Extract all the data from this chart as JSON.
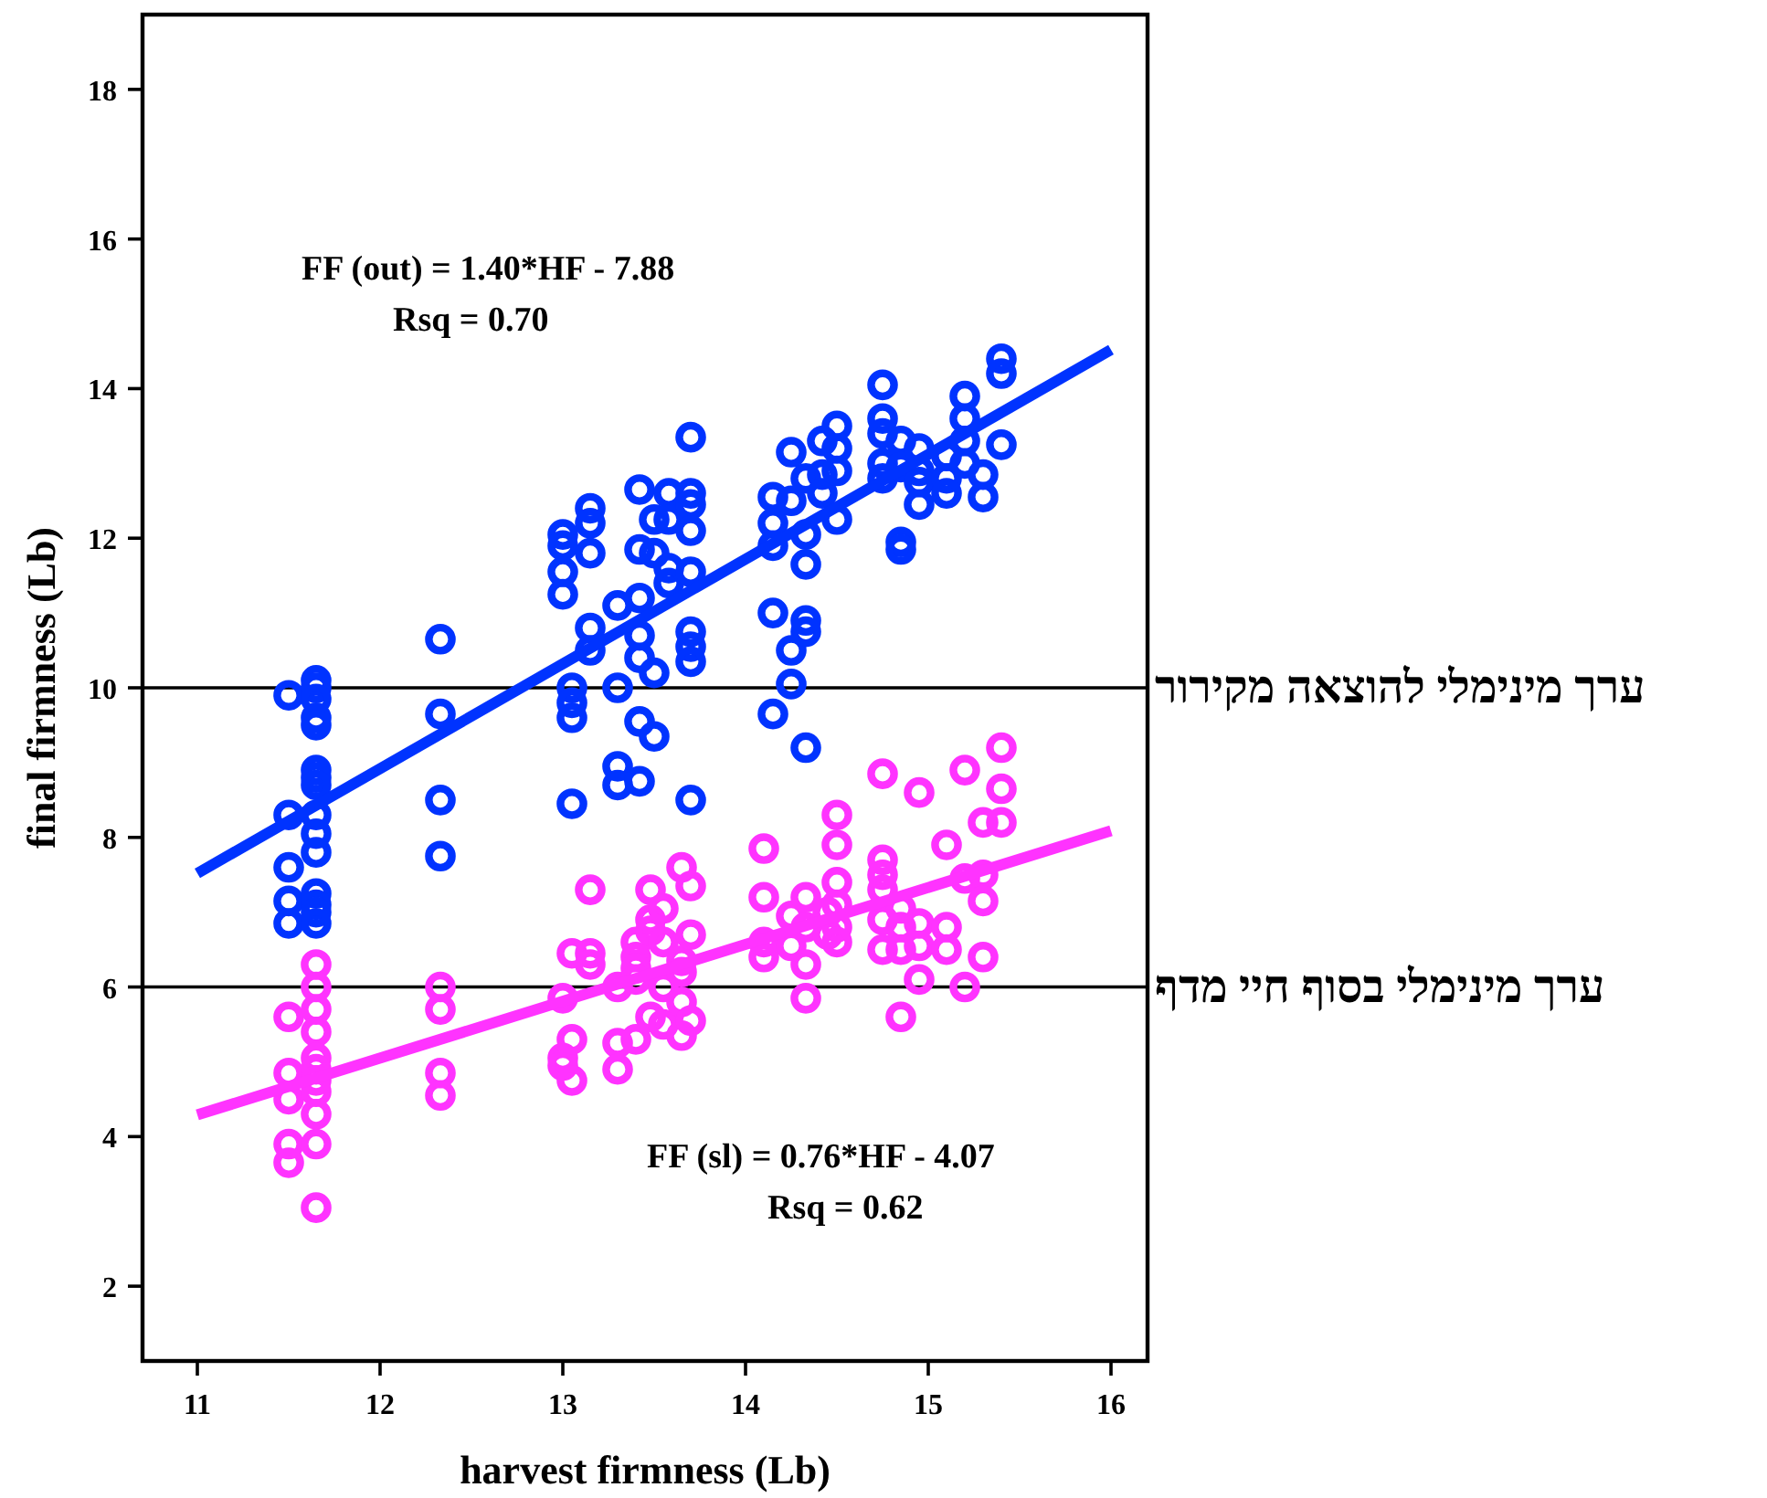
{
  "chart_data": {
    "type": "scatter",
    "xlabel": "harvest firmness (Lb)",
    "ylabel": "final firmness (Lb)",
    "xlim": [
      10.7,
      16.2
    ],
    "ylim": [
      1,
      19
    ],
    "xticks": [
      11,
      12,
      13,
      14,
      15,
      16
    ],
    "yticks": [
      2,
      4,
      6,
      8,
      10,
      12,
      14,
      16,
      18
    ],
    "grid": false,
    "series": [
      {
        "marker": "circle",
        "color": "#0033ff",
        "x": [
          11.5,
          11.5,
          11.5,
          11.5,
          11.5,
          11.65,
          11.65,
          11.65,
          11.65,
          11.65,
          11.65,
          11.65,
          11.65,
          11.65,
          11.65,
          11.65,
          11.65,
          11.65,
          11.65,
          11.65,
          12.33,
          12.33,
          12.33,
          12.33,
          13.0,
          13.0,
          13.0,
          13.0,
          13.05,
          13.05,
          13.05,
          13.05,
          13.15,
          13.15,
          13.15,
          13.15,
          13.15,
          13.3,
          13.3,
          13.3,
          13.3,
          13.42,
          13.42,
          13.42,
          13.42,
          13.42,
          13.42,
          13.42,
          13.5,
          13.5,
          13.5,
          13.5,
          13.58,
          13.58,
          13.58,
          13.58,
          13.7,
          13.7,
          13.7,
          13.7,
          13.7,
          13.7,
          13.7,
          13.7,
          13.7,
          14.15,
          14.15,
          14.15,
          14.15,
          14.15,
          14.25,
          14.25,
          14.25,
          14.25,
          14.33,
          14.33,
          14.33,
          14.33,
          14.33,
          14.33,
          14.42,
          14.42,
          14.42,
          14.5,
          14.5,
          14.5,
          14.5,
          14.75,
          14.75,
          14.75,
          14.75,
          14.75,
          14.85,
          14.85,
          14.85,
          14.85,
          14.95,
          14.95,
          14.95,
          14.95,
          15.1,
          15.1,
          15.1,
          15.2,
          15.2,
          15.2,
          15.2,
          15.3,
          15.3,
          15.4,
          15.4,
          15.4
        ],
        "values": [
          9.9,
          8.3,
          7.6,
          7.15,
          6.85,
          10.1,
          10.0,
          9.85,
          9.6,
          9.5,
          8.9,
          8.8,
          8.7,
          8.3,
          8.05,
          7.8,
          7.25,
          7.1,
          7.0,
          6.85,
          10.65,
          9.65,
          8.5,
          7.75,
          12.05,
          11.9,
          11.55,
          11.25,
          10.0,
          9.8,
          9.6,
          8.45,
          12.4,
          12.2,
          11.8,
          10.8,
          10.5,
          11.1,
          10.0,
          8.95,
          8.7,
          12.65,
          11.85,
          11.2,
          10.7,
          10.4,
          9.55,
          8.75,
          12.25,
          11.8,
          10.2,
          9.35,
          12.6,
          12.25,
          11.6,
          11.4,
          13.35,
          12.6,
          12.45,
          12.1,
          11.55,
          10.75,
          10.55,
          10.35,
          8.5,
          12.55,
          12.2,
          11.9,
          11.0,
          9.65,
          13.15,
          12.5,
          10.5,
          10.05,
          12.8,
          12.05,
          11.65,
          10.9,
          10.75,
          9.2,
          13.3,
          12.85,
          12.6,
          13.5,
          13.2,
          12.9,
          12.25,
          14.05,
          13.6,
          13.4,
          13.0,
          12.8,
          13.3,
          12.95,
          11.95,
          11.85,
          13.2,
          12.9,
          12.75,
          12.45,
          13.1,
          12.8,
          12.6,
          13.9,
          13.6,
          13.3,
          13.0,
          12.85,
          12.55,
          14.4,
          14.2,
          13.25
        ]
      },
      {
        "marker": "circle",
        "color": "#ff33ff",
        "x": [
          11.5,
          11.5,
          11.5,
          11.5,
          11.5,
          11.65,
          11.65,
          11.65,
          11.65,
          11.65,
          11.65,
          11.65,
          11.65,
          11.65,
          11.65,
          11.65,
          12.33,
          12.33,
          12.33,
          12.33,
          13.0,
          13.0,
          13.0,
          13.05,
          13.05,
          13.05,
          13.15,
          13.15,
          13.15,
          13.3,
          13.3,
          13.3,
          13.4,
          13.4,
          13.4,
          13.4,
          13.4,
          13.48,
          13.48,
          13.48,
          13.48,
          13.55,
          13.55,
          13.55,
          13.55,
          13.65,
          13.65,
          13.65,
          13.65,
          13.65,
          13.7,
          13.7,
          13.7,
          14.1,
          14.1,
          14.1,
          14.1,
          14.25,
          14.25,
          14.33,
          14.33,
          14.33,
          14.33,
          14.45,
          14.45,
          14.5,
          14.5,
          14.5,
          14.5,
          14.5,
          14.5,
          14.75,
          14.75,
          14.75,
          14.75,
          14.75,
          14.75,
          14.85,
          14.85,
          14.85,
          14.85,
          14.95,
          14.95,
          14.95,
          14.95,
          15.1,
          15.1,
          15.1,
          15.2,
          15.2,
          15.2,
          15.3,
          15.3,
          15.3,
          15.3,
          15.4,
          15.4,
          15.4
        ],
        "values": [
          5.6,
          4.85,
          4.5,
          3.9,
          3.65,
          6.3,
          6.0,
          5.7,
          5.4,
          5.05,
          4.9,
          4.75,
          4.6,
          4.3,
          3.9,
          3.05,
          6.0,
          5.7,
          4.85,
          4.55,
          5.85,
          5.05,
          4.95,
          6.45,
          5.3,
          4.75,
          7.3,
          6.45,
          6.3,
          6.0,
          5.25,
          4.9,
          6.6,
          6.4,
          6.25,
          6.1,
          5.3,
          7.3,
          6.9,
          6.75,
          5.6,
          7.05,
          6.6,
          6.0,
          5.5,
          7.6,
          6.35,
          6.2,
          5.8,
          5.35,
          7.35,
          6.7,
          5.55,
          7.85,
          7.2,
          6.6,
          6.4,
          6.95,
          6.55,
          7.2,
          6.8,
          6.3,
          5.85,
          7.0,
          6.7,
          8.3,
          7.9,
          7.4,
          7.1,
          6.8,
          6.6,
          8.85,
          7.7,
          7.5,
          7.3,
          6.9,
          6.5,
          7.05,
          6.8,
          6.5,
          5.6,
          8.6,
          6.85,
          6.55,
          6.1,
          7.9,
          6.8,
          6.5,
          8.9,
          7.45,
          6.0,
          8.2,
          7.5,
          7.15,
          6.4,
          9.2,
          8.65,
          8.2
        ]
      },
      {
        "type": "line",
        "color": "#0033ff",
        "x": [
          11,
          16
        ],
        "values": [
          7.52,
          14.52
        ]
      },
      {
        "type": "line",
        "color": "#ff33ff",
        "x": [
          11,
          16
        ],
        "values": [
          4.29,
          8.09
        ]
      }
    ],
    "ref_lines": [
      {
        "axis": "y",
        "value": 10,
        "label": "ערך מינימלי להוצאה מקירור",
        "color": "#000000"
      },
      {
        "axis": "y",
        "value": 6,
        "label": "ערך מינימלי בסוף חיי מדף",
        "color": "#000000"
      }
    ],
    "annotations": [
      "FF (out)  = 1.40*HF - 7.88",
      "Rsq = 0.70",
      "FF (sl) = 0.76*HF - 4.07",
      "Rsq = 0.62"
    ]
  }
}
